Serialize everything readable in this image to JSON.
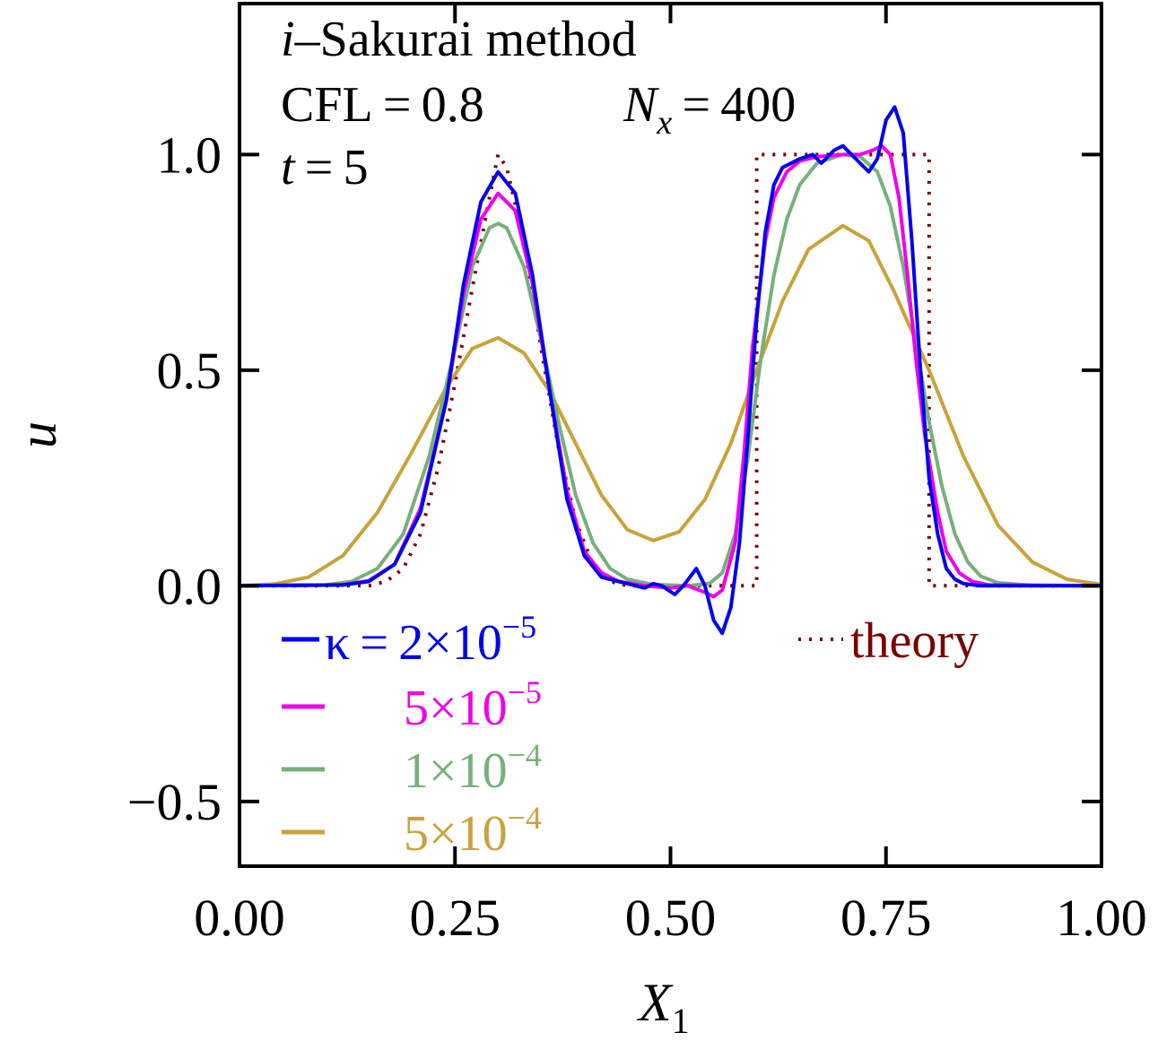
{
  "chart_data": {
    "type": "line",
    "xlabel": "X",
    "xlabel_sub": "1",
    "ylabel": "u",
    "xlim": [
      0,
      1
    ],
    "ylim": [
      -0.65,
      1.35
    ],
    "grid": false,
    "legend_placement": "lower-left",
    "x_ticks": [
      {
        "value": 0.0,
        "label": "0.00"
      },
      {
        "value": 0.25,
        "label": "0.25"
      },
      {
        "value": 0.5,
        "label": "0.50"
      },
      {
        "value": 0.75,
        "label": "0.75"
      },
      {
        "value": 1.0,
        "label": "1.00"
      }
    ],
    "y_ticks": [
      {
        "value": -0.5,
        "label": "−0.5"
      },
      {
        "value": 0.0,
        "label": "0.0"
      },
      {
        "value": 0.5,
        "label": "0.5"
      },
      {
        "value": 1.0,
        "label": "1.0"
      }
    ],
    "annotations": {
      "method_italic": "i",
      "method_rest": "–Sakurai method",
      "cfl": "CFL = 0.8",
      "nx_letter": "N",
      "nx_sub": "x",
      "nx_value": " = 400",
      "time_letter": "t",
      "time_value": " = 5"
    },
    "legend": {
      "kappa_prefix": "κ = ",
      "entries": [
        {
          "base": "2×10",
          "exp": "−5",
          "color": "#0000ee"
        },
        {
          "base": "5×10",
          "exp": "−5",
          "color": "#ee00ee"
        },
        {
          "base": "1×10",
          "exp": "−4",
          "color": "#77b07a"
        },
        {
          "base": "5×10",
          "exp": "−4",
          "color": "#c9a23a"
        }
      ],
      "theory_label": "theory",
      "theory_color": "#7a0000"
    },
    "series": [
      {
        "color": "#0000ee",
        "points": [
          [
            0,
            0
          ],
          [
            0.12,
            0.002
          ],
          [
            0.15,
            0.01
          ],
          [
            0.18,
            0.05
          ],
          [
            0.21,
            0.17
          ],
          [
            0.24,
            0.43
          ],
          [
            0.26,
            0.7
          ],
          [
            0.28,
            0.89
          ],
          [
            0.3,
            0.96
          ],
          [
            0.32,
            0.91
          ],
          [
            0.34,
            0.72
          ],
          [
            0.36,
            0.45
          ],
          [
            0.38,
            0.2
          ],
          [
            0.4,
            0.07
          ],
          [
            0.42,
            0.02
          ],
          [
            0.44,
            0.01
          ],
          [
            0.46,
            0.0
          ],
          [
            0.47,
            -0.005
          ],
          [
            0.48,
            0.005
          ],
          [
            0.49,
            0.0
          ],
          [
            0.505,
            -0.02
          ],
          [
            0.515,
            0.0
          ],
          [
            0.53,
            0.04
          ],
          [
            0.54,
            0.0
          ],
          [
            0.55,
            -0.08
          ],
          [
            0.56,
            -0.11
          ],
          [
            0.57,
            -0.05
          ],
          [
            0.58,
            0.1
          ],
          [
            0.59,
            0.35
          ],
          [
            0.6,
            0.62
          ],
          [
            0.61,
            0.82
          ],
          [
            0.62,
            0.93
          ],
          [
            0.63,
            0.97
          ],
          [
            0.65,
            0.99
          ],
          [
            0.665,
            1.0
          ],
          [
            0.675,
            0.98
          ],
          [
            0.69,
            1.01
          ],
          [
            0.7,
            1.02
          ],
          [
            0.71,
            1.0
          ],
          [
            0.72,
            0.98
          ],
          [
            0.73,
            0.96
          ],
          [
            0.74,
            0.99
          ],
          [
            0.75,
            1.08
          ],
          [
            0.76,
            1.11
          ],
          [
            0.77,
            1.05
          ],
          [
            0.78,
            0.8
          ],
          [
            0.79,
            0.5
          ],
          [
            0.8,
            0.25
          ],
          [
            0.81,
            0.12
          ],
          [
            0.82,
            0.04
          ],
          [
            0.83,
            0.015
          ],
          [
            0.84,
            0.005
          ],
          [
            0.86,
            0.0
          ],
          [
            1.0,
            0.0
          ]
        ]
      },
      {
        "color": "#ee00ee",
        "points": [
          [
            0,
            0
          ],
          [
            0.12,
            0.002
          ],
          [
            0.15,
            0.012
          ],
          [
            0.18,
            0.05
          ],
          [
            0.21,
            0.18
          ],
          [
            0.24,
            0.43
          ],
          [
            0.26,
            0.68
          ],
          [
            0.28,
            0.85
          ],
          [
            0.3,
            0.91
          ],
          [
            0.32,
            0.87
          ],
          [
            0.34,
            0.7
          ],
          [
            0.36,
            0.45
          ],
          [
            0.38,
            0.22
          ],
          [
            0.4,
            0.08
          ],
          [
            0.42,
            0.03
          ],
          [
            0.44,
            0.01
          ],
          [
            0.47,
            0.0
          ],
          [
            0.5,
            -0.005
          ],
          [
            0.52,
            0.0
          ],
          [
            0.54,
            -0.015
          ],
          [
            0.55,
            -0.025
          ],
          [
            0.56,
            -0.01
          ],
          [
            0.575,
            0.1
          ],
          [
            0.585,
            0.3
          ],
          [
            0.595,
            0.55
          ],
          [
            0.61,
            0.8
          ],
          [
            0.62,
            0.9
          ],
          [
            0.635,
            0.96
          ],
          [
            0.65,
            0.985
          ],
          [
            0.67,
            0.995
          ],
          [
            0.7,
            1.0
          ],
          [
            0.72,
            1.0
          ],
          [
            0.735,
            1.01
          ],
          [
            0.745,
            1.02
          ],
          [
            0.755,
            1.0
          ],
          [
            0.765,
            0.9
          ],
          [
            0.775,
            0.72
          ],
          [
            0.785,
            0.52
          ],
          [
            0.795,
            0.35
          ],
          [
            0.81,
            0.17
          ],
          [
            0.82,
            0.08
          ],
          [
            0.835,
            0.03
          ],
          [
            0.85,
            0.01
          ],
          [
            0.87,
            0.002
          ],
          [
            1.0,
            0.0
          ]
        ]
      },
      {
        "color": "#77b07a",
        "points": [
          [
            0,
            0
          ],
          [
            0.1,
            0.002
          ],
          [
            0.13,
            0.01
          ],
          [
            0.16,
            0.04
          ],
          [
            0.19,
            0.12
          ],
          [
            0.22,
            0.3
          ],
          [
            0.25,
            0.55
          ],
          [
            0.27,
            0.74
          ],
          [
            0.29,
            0.83
          ],
          [
            0.3,
            0.84
          ],
          [
            0.31,
            0.83
          ],
          [
            0.33,
            0.74
          ],
          [
            0.35,
            0.57
          ],
          [
            0.37,
            0.38
          ],
          [
            0.39,
            0.21
          ],
          [
            0.41,
            0.1
          ],
          [
            0.43,
            0.04
          ],
          [
            0.45,
            0.015
          ],
          [
            0.48,
            0.003
          ],
          [
            0.52,
            0.0
          ],
          [
            0.545,
            0.005
          ],
          [
            0.56,
            0.03
          ],
          [
            0.575,
            0.12
          ],
          [
            0.59,
            0.3
          ],
          [
            0.605,
            0.53
          ],
          [
            0.62,
            0.72
          ],
          [
            0.635,
            0.85
          ],
          [
            0.65,
            0.93
          ],
          [
            0.67,
            0.98
          ],
          [
            0.7,
            1.0
          ],
          [
            0.72,
            0.995
          ],
          [
            0.74,
            0.96
          ],
          [
            0.755,
            0.88
          ],
          [
            0.77,
            0.74
          ],
          [
            0.785,
            0.56
          ],
          [
            0.8,
            0.38
          ],
          [
            0.815,
            0.23
          ],
          [
            0.83,
            0.12
          ],
          [
            0.845,
            0.055
          ],
          [
            0.86,
            0.022
          ],
          [
            0.88,
            0.007
          ],
          [
            0.92,
            0.001
          ],
          [
            1.0,
            0.0
          ]
        ]
      },
      {
        "color": "#c9a23a",
        "points": [
          [
            0,
            0
          ],
          [
            0.04,
            0.004
          ],
          [
            0.08,
            0.02
          ],
          [
            0.12,
            0.07
          ],
          [
            0.16,
            0.17
          ],
          [
            0.2,
            0.31
          ],
          [
            0.24,
            0.46
          ],
          [
            0.27,
            0.55
          ],
          [
            0.3,
            0.575
          ],
          [
            0.33,
            0.54
          ],
          [
            0.36,
            0.45
          ],
          [
            0.39,
            0.33
          ],
          [
            0.42,
            0.21
          ],
          [
            0.45,
            0.13
          ],
          [
            0.48,
            0.105
          ],
          [
            0.51,
            0.125
          ],
          [
            0.54,
            0.2
          ],
          [
            0.57,
            0.33
          ],
          [
            0.6,
            0.5
          ],
          [
            0.63,
            0.66
          ],
          [
            0.66,
            0.78
          ],
          [
            0.7,
            0.835
          ],
          [
            0.73,
            0.8
          ],
          [
            0.76,
            0.68
          ],
          [
            0.8,
            0.5
          ],
          [
            0.84,
            0.3
          ],
          [
            0.88,
            0.14
          ],
          [
            0.92,
            0.055
          ],
          [
            0.96,
            0.015
          ],
          [
            1.0,
            0.003
          ]
        ]
      }
    ],
    "theory": {
      "color": "#7a0000",
      "points": [
        [
          0,
          0
        ],
        [
          0.15,
          0.0
        ],
        [
          0.17,
          0.01
        ],
        [
          0.19,
          0.04
        ],
        [
          0.21,
          0.12
        ],
        [
          0.23,
          0.27
        ],
        [
          0.25,
          0.47
        ],
        [
          0.27,
          0.69
        ],
        [
          0.29,
          0.9
        ],
        [
          0.3,
          1.0
        ],
        [
          0.31,
          0.97
        ],
        [
          0.33,
          0.8
        ],
        [
          0.35,
          0.55
        ],
        [
          0.37,
          0.32
        ],
        [
          0.39,
          0.15
        ],
        [
          0.41,
          0.05
        ],
        [
          0.43,
          0.01
        ],
        [
          0.45,
          0.0
        ],
        [
          0.6,
          0.0
        ],
        [
          0.6,
          1.0
        ],
        [
          0.8,
          1.0
        ],
        [
          0.8,
          0.0
        ],
        [
          1.0,
          0.0
        ]
      ]
    }
  }
}
